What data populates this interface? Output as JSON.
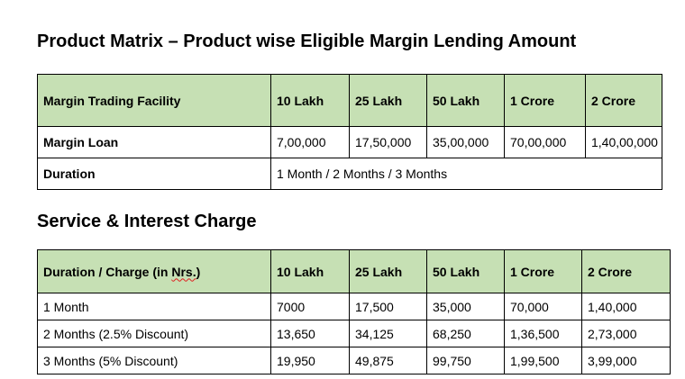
{
  "matrix": {
    "title": "Product Matrix – Product wise Eligible Margin Lending Amount",
    "header": [
      "Margin Trading Facility",
      "10 Lakh",
      "25 Lakh",
      "50 Lakh",
      "1 Crore",
      "2 Crore"
    ],
    "margin_loan": {
      "label": "Margin Loan",
      "values": [
        "7,00,000",
        "17,50,000",
        "35,00,000",
        "70,00,000",
        "1,40,00,000"
      ]
    },
    "duration": {
      "label": "Duration",
      "value": "1 Month / 2 Months / 3 Months"
    }
  },
  "charges": {
    "title": "Service & Interest Charge",
    "header_prefix": "Duration / Charge (in ",
    "header_word": "Nrs.",
    "header_suffix": ")",
    "header": [
      "10 Lakh",
      "25 Lakh",
      "50 Lakh",
      "1 Crore",
      "2 Crore"
    ],
    "rows": [
      {
        "label": "1 Month",
        "values": [
          "7000",
          "17,500",
          "35,000",
          "70,000",
          "1,40,000"
        ]
      },
      {
        "label": "2 Months (2.5% Discount)",
        "values": [
          "13,650",
          "34,125",
          "68,250",
          "1,36,500",
          "2,73,000"
        ]
      },
      {
        "label": "3 Months (5% Discount)",
        "values": [
          "19,950",
          "49,875",
          "99,750",
          "1,99,500",
          "3,99,000"
        ]
      }
    ]
  }
}
